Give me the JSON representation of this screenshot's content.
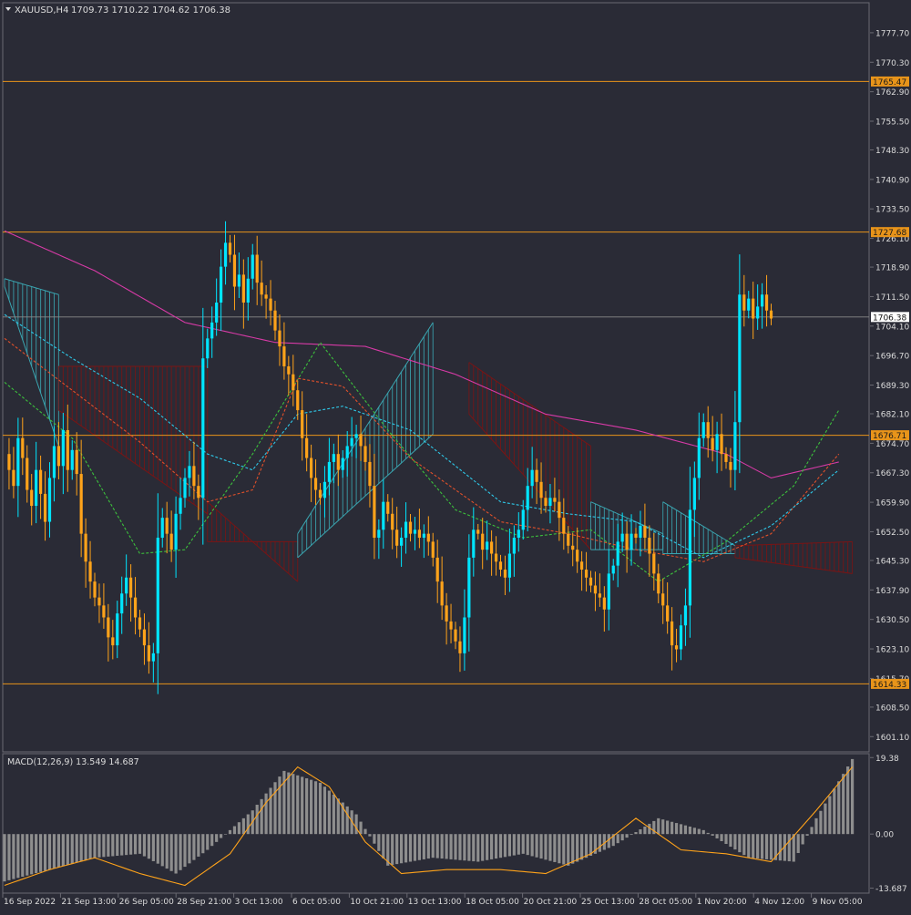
{
  "header": {
    "menu_icon": "triangle-down-icon",
    "symbol": "XAUUSD,H4",
    "ohlc": "1709.73 1710.22 1704.62 1706.38"
  },
  "colors": {
    "background": "#2a2b36",
    "bull": "#00e5ff",
    "bear": "#ffa31a",
    "level_line": "#e8941a",
    "price_line": "#8a8a8a",
    "sma": "#d63aa6",
    "tenkan": "#2ec8e8",
    "kijun": "#e0502a",
    "chikou": "#3cc03c",
    "kumo_bull": "#3aa5b0",
    "kumo_bear": "#7a1414",
    "macd_hist": "#8e8e8e",
    "macd_signal": "#ffa31a",
    "text": "#dcdcdc"
  },
  "chart_data": {
    "type": "candlestick",
    "symbol": "XAUUSD",
    "timeframe": "H4",
    "price_axis": {
      "min": 1597.5,
      "max": 1785.0,
      "ticks": [
        "1777.70",
        "1770.30",
        "1762.90",
        "1755.50",
        "1748.30",
        "1740.90",
        "1733.50",
        "1726.10",
        "1718.90",
        "1711.50",
        "1704.10",
        "1696.70",
        "1689.30",
        "1682.10",
        "1674.70",
        "1667.30",
        "1659.90",
        "1652.50",
        "1645.30",
        "1637.90",
        "1630.50",
        "1623.10",
        "1615.70",
        "1608.50",
        "1601.10"
      ]
    },
    "time_axis": [
      "16 Sep 2022",
      "21 Sep 13:00",
      "26 Sep 05:00",
      "28 Sep 21:00",
      "3 Oct 13:00",
      "6 Oct 05:00",
      "10 Oct 21:00",
      "13 Oct 13:00",
      "18 Oct 05:00",
      "20 Oct 21:00",
      "25 Oct 13:00",
      "28 Oct 05:00",
      "1 Nov 20:00",
      "4 Nov 12:00",
      "9 Nov 05:00"
    ],
    "horizontal_levels": [
      "1765.47",
      "1727.68",
      "1676.71",
      "1614.33"
    ],
    "current_price": "1706.38",
    "close_path": [
      1672,
      1668,
      1664,
      1676,
      1671,
      1663,
      1659,
      1668,
      1662,
      1655,
      1666,
      1674,
      1669,
      1678,
      1668,
      1673,
      1667,
      1652,
      1645,
      1640,
      1636,
      1634,
      1631,
      1626,
      1624,
      1632,
      1637,
      1641,
      1636,
      1631,
      1628,
      1624,
      1620,
      1622,
      1651,
      1656,
      1652,
      1648,
      1657,
      1661,
      1666,
      1669,
      1664,
      1661,
      1696,
      1701,
      1705,
      1710,
      1719,
      1725,
      1722,
      1714,
      1717,
      1710,
      1716,
      1722,
      1715,
      1712,
      1711,
      1708,
      1703,
      1699,
      1694,
      1692,
      1688,
      1683,
      1676,
      1671,
      1666,
      1663,
      1661,
      1665,
      1670,
      1672,
      1668,
      1671,
      1674,
      1676,
      1677,
      1674,
      1670,
      1664,
      1651,
      1653,
      1660,
      1657,
      1653,
      1649,
      1651,
      1655,
      1652,
      1653,
      1651,
      1652,
      1650,
      1646,
      1640,
      1634,
      1630,
      1628,
      1625,
      1622,
      1631,
      1646,
      1653,
      1652,
      1648,
      1650,
      1647,
      1645,
      1643,
      1641,
      1647,
      1651,
      1653,
      1658,
      1664,
      1668,
      1665,
      1661,
      1659,
      1661,
      1660,
      1656,
      1652,
      1649,
      1648,
      1645,
      1643,
      1641,
      1639,
      1637,
      1636,
      1633,
      1642,
      1644,
      1650,
      1652,
      1648,
      1652,
      1651,
      1654,
      1651,
      1647,
      1642,
      1637,
      1634,
      1630,
      1624,
      1623,
      1629,
      1634,
      1658,
      1666,
      1676,
      1680,
      1676,
      1673,
      1677,
      1672,
      1670,
      1668,
      1680,
      1712,
      1708,
      1711,
      1706,
      1709,
      1712,
      1708,
      1706
    ],
    "indicators": {
      "sma": {
        "name": "",
        "points": [
          [
            0,
            1728
          ],
          [
            20,
            1718
          ],
          [
            40,
            1705
          ],
          [
            60,
            1700
          ],
          [
            80,
            1699
          ],
          [
            100,
            1692
          ],
          [
            120,
            1682
          ],
          [
            140,
            1678
          ],
          [
            160,
            1672
          ],
          [
            170,
            1666
          ],
          [
            185,
            1670
          ]
        ]
      },
      "tenkan": {
        "name": "",
        "points": [
          [
            0,
            1707
          ],
          [
            15,
            1696
          ],
          [
            30,
            1686
          ],
          [
            45,
            1672
          ],
          [
            55,
            1668
          ],
          [
            65,
            1682
          ],
          [
            75,
            1684
          ],
          [
            90,
            1678
          ],
          [
            110,
            1660
          ],
          [
            125,
            1657
          ],
          [
            140,
            1655
          ],
          [
            155,
            1646
          ],
          [
            170,
            1654
          ],
          [
            185,
            1668
          ]
        ]
      },
      "kijun": {
        "name": "",
        "points": [
          [
            0,
            1701
          ],
          [
            15,
            1688
          ],
          [
            30,
            1675
          ],
          [
            45,
            1660
          ],
          [
            55,
            1663
          ],
          [
            65,
            1691
          ],
          [
            75,
            1689
          ],
          [
            90,
            1671
          ],
          [
            110,
            1655
          ],
          [
            125,
            1652
          ],
          [
            140,
            1648
          ],
          [
            155,
            1645
          ],
          [
            170,
            1652
          ],
          [
            185,
            1672
          ]
        ]
      },
      "chikou": {
        "name": "",
        "points": [
          [
            0,
            1690
          ],
          [
            15,
            1676
          ],
          [
            30,
            1647
          ],
          [
            40,
            1648
          ],
          [
            55,
            1672
          ],
          [
            70,
            1700
          ],
          [
            85,
            1678
          ],
          [
            100,
            1658
          ],
          [
            115,
            1651
          ],
          [
            130,
            1653
          ],
          [
            145,
            1640
          ],
          [
            160,
            1650
          ],
          [
            175,
            1664
          ],
          [
            185,
            1683
          ]
        ]
      },
      "kumo": {
        "name": "",
        "segments": [
          {
            "from": 0,
            "to": 12,
            "a": [
              1716,
              1712
            ],
            "b": [
              1714,
              1674
            ],
            "fill": "bull"
          },
          {
            "from": 12,
            "to": 45,
            "a": [
              1694,
              1694
            ],
            "b": [
              1683,
              1657
            ],
            "fill": "bear"
          },
          {
            "from": 45,
            "to": 65,
            "a": [
              1650,
              1650
            ],
            "b": [
              1660,
              1640
            ],
            "fill": "bear"
          },
          {
            "from": 65,
            "to": 95,
            "a": [
              1652,
              1705
            ],
            "b": [
              1646,
              1677
            ],
            "fill": "bull"
          },
          {
            "from": 103,
            "to": 130,
            "a": [
              1695,
              1674
            ],
            "b": [
              1682,
              1648
            ],
            "fill": "bear"
          },
          {
            "from": 130,
            "to": 146,
            "a": [
              1660,
              1652
            ],
            "b": [
              1648,
              1648
            ],
            "fill": "bull"
          },
          {
            "from": 146,
            "to": 162,
            "a": [
              1647,
              1647
            ],
            "b": [
              1660,
              1649
            ],
            "fill": "bull"
          },
          {
            "from": 162,
            "to": 188,
            "a": [
              1649,
              1650
            ],
            "b": [
              1646,
              1642
            ],
            "fill": "bear"
          }
        ]
      }
    }
  },
  "macd": {
    "label": "MACD(12,26,9) 13.549 14.687",
    "axis_min": -14.5,
    "axis_max": 19.9,
    "ticks": [
      "19.38",
      "0.00",
      "-13.687"
    ],
    "histogram": [
      [
        0,
        -12
      ],
      [
        10,
        -9
      ],
      [
        20,
        -6
      ],
      [
        30,
        -5
      ],
      [
        38,
        -10
      ],
      [
        45,
        -4
      ],
      [
        55,
        6
      ],
      [
        62,
        16
      ],
      [
        70,
        13
      ],
      [
        78,
        5
      ],
      [
        85,
        -8
      ],
      [
        95,
        -6
      ],
      [
        105,
        -7
      ],
      [
        115,
        -5
      ],
      [
        125,
        -8
      ],
      [
        135,
        -3
      ],
      [
        145,
        4
      ],
      [
        155,
        1
      ],
      [
        165,
        -6
      ],
      [
        175,
        -7
      ],
      [
        180,
        4
      ],
      [
        188,
        19
      ]
    ],
    "signal": [
      [
        0,
        -13
      ],
      [
        10,
        -9
      ],
      [
        20,
        -6
      ],
      [
        30,
        -10
      ],
      [
        40,
        -13
      ],
      [
        50,
        -5
      ],
      [
        58,
        8
      ],
      [
        65,
        17
      ],
      [
        72,
        12
      ],
      [
        80,
        -2
      ],
      [
        88,
        -10
      ],
      [
        98,
        -9
      ],
      [
        110,
        -9
      ],
      [
        120,
        -10
      ],
      [
        130,
        -5
      ],
      [
        140,
        4
      ],
      [
        150,
        -4
      ],
      [
        160,
        -5
      ],
      [
        170,
        -7
      ],
      [
        180,
        6
      ],
      [
        188,
        17
      ]
    ]
  }
}
